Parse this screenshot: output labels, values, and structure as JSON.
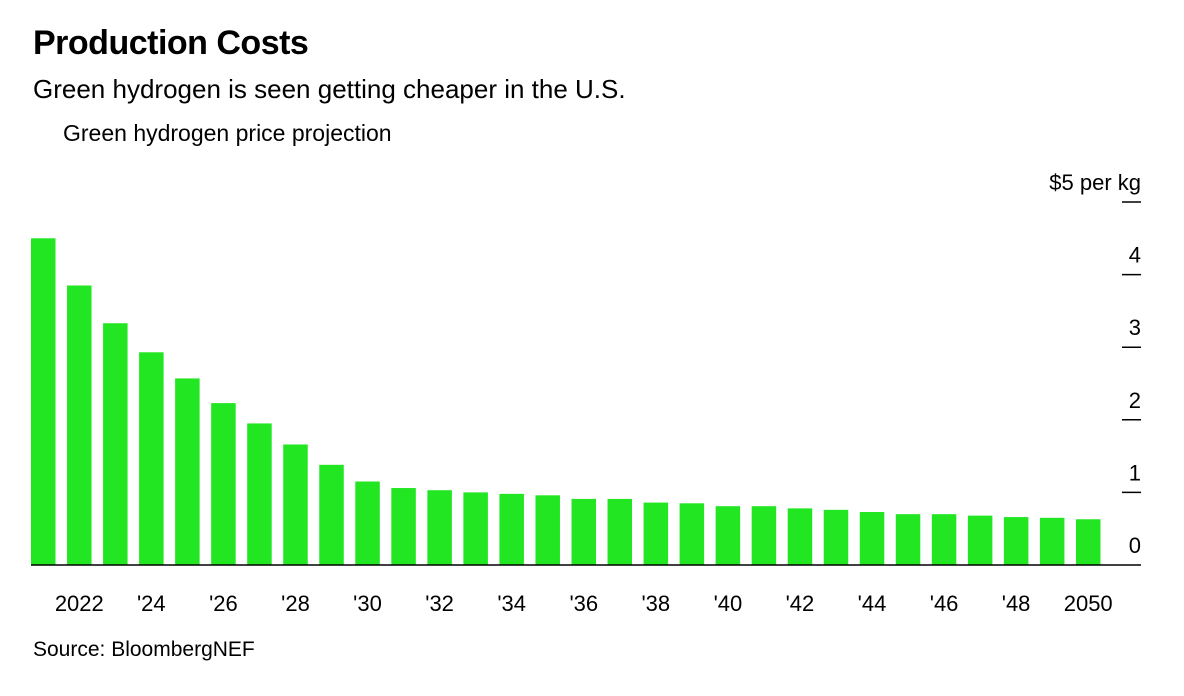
{
  "header": {
    "title": "Production Costs",
    "subtitle": "Green hydrogen is seen getting cheaper in the U.S."
  },
  "footer": {
    "source": "Source: BloombergNEF"
  },
  "chart_data": {
    "type": "bar",
    "title": "Green hydrogen price projection",
    "ylabel": "$5 per kg",
    "unit": "$ per kg",
    "ylim": [
      0,
      5
    ],
    "y_ticks": [
      0,
      1,
      2,
      3,
      4,
      5
    ],
    "y_tick_labels": [
      "0",
      "1",
      "2",
      "3",
      "4",
      "$5 per kg"
    ],
    "categories": [
      "2021",
      "2022",
      "2023",
      "2024",
      "2025",
      "2026",
      "2027",
      "2028",
      "2029",
      "2030",
      "2031",
      "2032",
      "2033",
      "2034",
      "2035",
      "2036",
      "2037",
      "2038",
      "2039",
      "2040",
      "2041",
      "2042",
      "2043",
      "2044",
      "2045",
      "2046",
      "2047",
      "2048",
      "2049",
      "2050"
    ],
    "x_tick_labels": [
      "",
      "2022",
      "",
      "'24",
      "",
      "'26",
      "",
      "'28",
      "",
      "'30",
      "",
      "'32",
      "",
      "'34",
      "",
      "'36",
      "",
      "'38",
      "",
      "'40",
      "",
      "'42",
      "",
      "'44",
      "",
      "'46",
      "",
      "'48",
      "",
      "2050"
    ],
    "values": [
      4.5,
      3.85,
      3.33,
      2.93,
      2.57,
      2.23,
      1.95,
      1.66,
      1.38,
      1.15,
      1.06,
      1.03,
      1.0,
      0.98,
      0.96,
      0.91,
      0.91,
      0.86,
      0.85,
      0.81,
      0.81,
      0.78,
      0.76,
      0.73,
      0.7,
      0.7,
      0.68,
      0.66,
      0.65,
      0.63
    ],
    "bar_color": "#22e622",
    "grid": false,
    "y_axis_side": "right"
  }
}
